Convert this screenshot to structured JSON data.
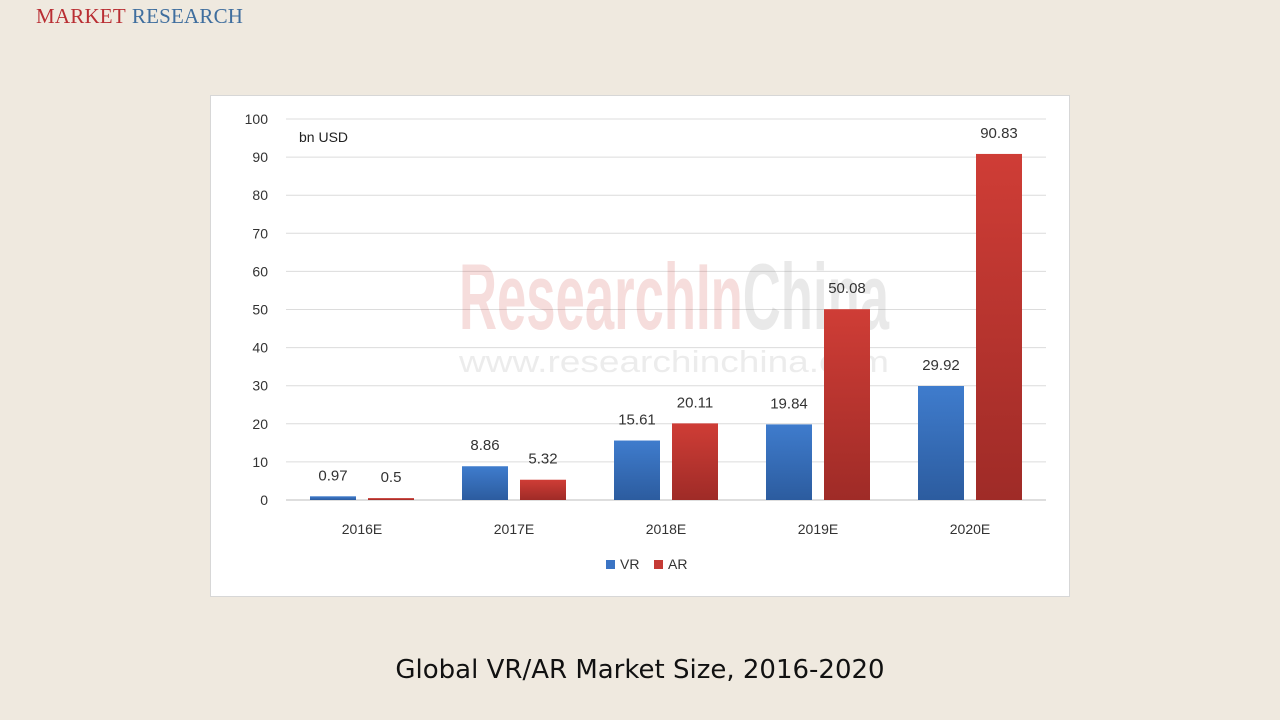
{
  "brand": {
    "part1": "MARKET",
    "part2": "RESEARCH"
  },
  "caption": "Global VR/AR Market Size, 2016-2020",
  "watermark": {
    "main_prefix": "Research",
    "main_mid": "In",
    "main_suffix": "China",
    "url": "www.researchinchina.com"
  },
  "colors": {
    "background": "#efe9df",
    "brand_red": "#b92e33",
    "brand_blue": "#3f6e9e",
    "vr": "#3b74c4",
    "ar": "#c53a35"
  },
  "chart_data": {
    "type": "bar",
    "unit_label": "bn USD",
    "categories": [
      "2016E",
      "2017E",
      "2018E",
      "2019E",
      "2020E"
    ],
    "series": [
      {
        "name": "VR",
        "color": "#3b74c4",
        "values": [
          0.97,
          8.86,
          15.61,
          19.84,
          29.92
        ],
        "labels": [
          "0.97",
          "8.86",
          "15.61",
          "19.84",
          "29.92"
        ]
      },
      {
        "name": "AR",
        "color": "#c53a35",
        "values": [
          0.5,
          5.32,
          20.11,
          50.08,
          90.83
        ],
        "labels": [
          "0.5",
          "5.32",
          "20.11",
          "50.08",
          "90.83"
        ]
      }
    ],
    "yticks": [
      "0",
      "10",
      "20",
      "30",
      "40",
      "50",
      "60",
      "70",
      "80",
      "90",
      "100"
    ],
    "ylim": [
      0,
      100
    ],
    "grid": true,
    "legend_position": "bottom-center"
  }
}
